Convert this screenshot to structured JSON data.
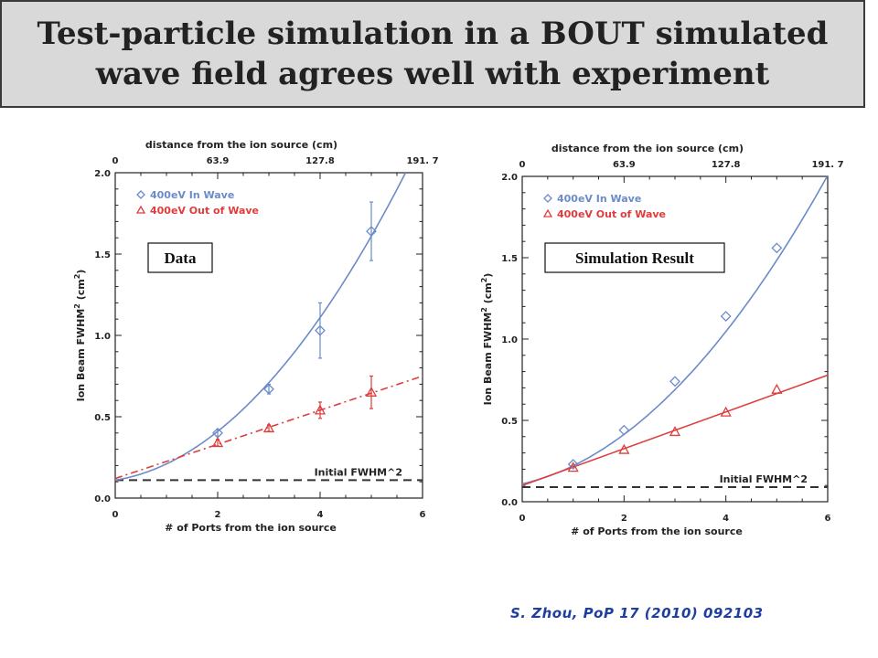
{
  "slide": {
    "title": "Test-particle simulation in a BOUT simulated\nwave field agrees well with experiment",
    "caption": "S. Zhou, PoP 17 (2010) 092103"
  },
  "chart_data": [
    {
      "type": "scatter",
      "panel_label": "Data",
      "xlabel": "# of Ports from the ion source",
      "ylabel": "Ion Beam FWHM",
      "ylabel_sup": "2",
      "ylabel_unit_pre": " (cm",
      "ylabel_unit_sup": "2",
      "ylabel_unit_post": ")",
      "top_xlabel": "distance  from the ion source  (cm)",
      "xlim": [
        0,
        6
      ],
      "ylim": [
        0,
        2.0
      ],
      "xticks": [
        "0",
        "2",
        "4",
        "6"
      ],
      "yticks": [
        "0.0",
        "0.5",
        "1.0",
        "1.5",
        "2.0"
      ],
      "top_ticks": [
        "0",
        "63.9",
        "127.8",
        "191.  7"
      ],
      "baseline": {
        "y": 0.11,
        "label": "Initial FWHM^2"
      },
      "colors": {
        "in_wave": "#6b8bc9",
        "out_wave": "#e03c3c",
        "baseline": "#333333"
      },
      "series": [
        {
          "name": "400eV In Wave",
          "marker": "diamond",
          "x": [
            2,
            3,
            4,
            5
          ],
          "y": [
            0.4,
            0.67,
            1.03,
            1.64
          ],
          "err": [
            0.02,
            0.03,
            0.17,
            0.18
          ],
          "fit": "quadratic",
          "fit_coeffs": [
            0.11,
            0.05,
            0.05
          ]
        },
        {
          "name": "400eV Out of Wave",
          "marker": "triangle",
          "x": [
            2,
            3,
            4,
            5
          ],
          "y": [
            0.34,
            0.43,
            0.54,
            0.65
          ],
          "err": [
            0.02,
            0.02,
            0.05,
            0.1
          ],
          "fit": "linear-dashdot",
          "fit_coeffs": [
            0.12,
            0.105
          ]
        }
      ]
    },
    {
      "type": "scatter",
      "panel_label": "Simulation Result",
      "xlabel": "# of Ports from the ion source",
      "ylabel": "Ion Beam FWHM",
      "ylabel_sup": "2",
      "ylabel_unit_pre": " (cm",
      "ylabel_unit_sup": "2",
      "ylabel_unit_post": ")",
      "top_xlabel": "distance from the ion source (cm)",
      "xlim": [
        0,
        6
      ],
      "ylim": [
        0,
        2.0
      ],
      "xticks": [
        "0",
        "2",
        "4",
        "6"
      ],
      "yticks": [
        "0.0",
        "0.5",
        "1.0",
        "1.5",
        "2.0"
      ],
      "top_ticks": [
        "0",
        "63.9",
        "127.8",
        "191.  7"
      ],
      "baseline": {
        "y": 0.09,
        "label": "Initial FWHM^2"
      },
      "colors": {
        "in_wave": "#6b8bc9",
        "out_wave": "#e03c3c",
        "baseline": "#333333"
      },
      "series": [
        {
          "name": "400eV In Wave",
          "marker": "diamond",
          "x": [
            1,
            2,
            3,
            4,
            5
          ],
          "y": [
            0.23,
            0.44,
            0.74,
            1.14,
            1.56
          ],
          "fit": "quadratic",
          "fit_coeffs": [
            0.11,
            0.07,
            0.041
          ]
        },
        {
          "name": "400eV Out of Wave",
          "marker": "triangle",
          "x": [
            1,
            2,
            3,
            4,
            5
          ],
          "y": [
            0.21,
            0.32,
            0.43,
            0.55,
            0.69
          ],
          "fit": "linear",
          "fit_coeffs": [
            0.1,
            0.113
          ]
        }
      ]
    }
  ]
}
